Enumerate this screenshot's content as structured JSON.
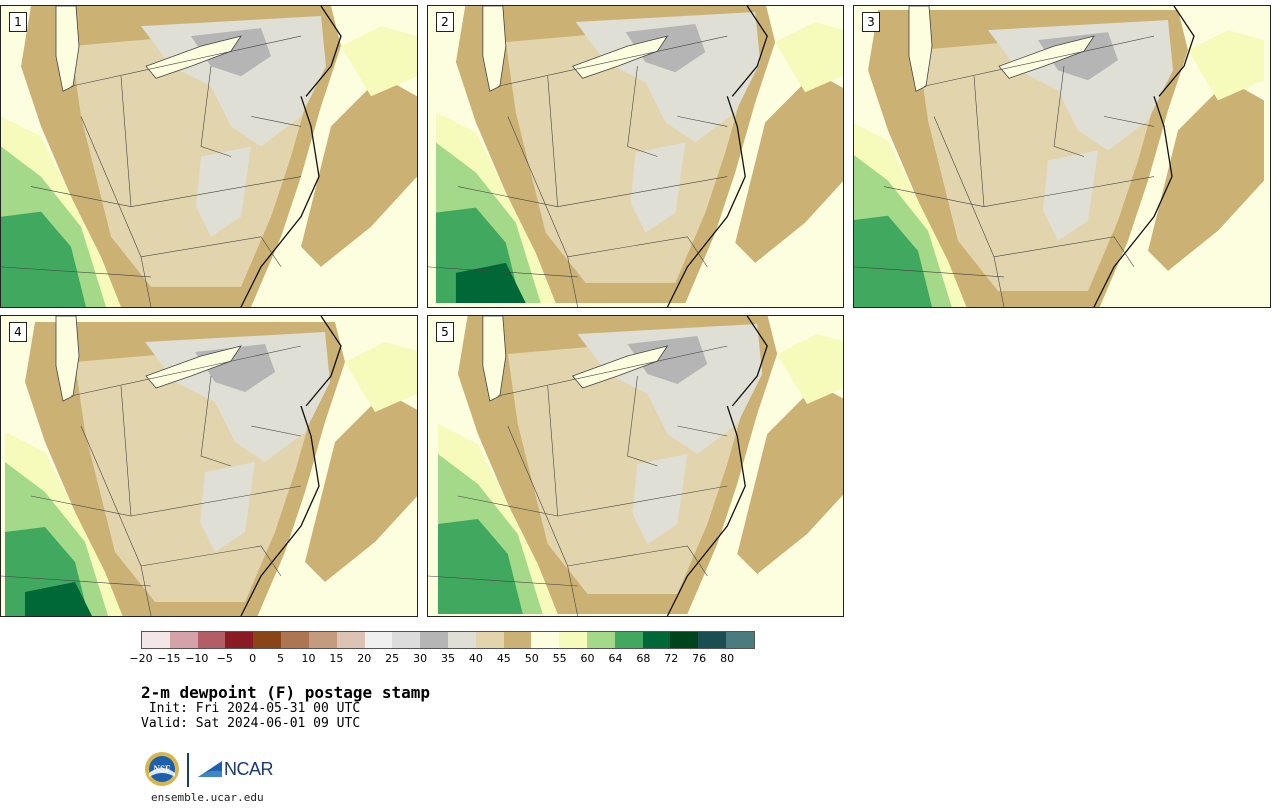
{
  "title": "2-m dewpoint (F) postage stamp",
  "init_line": " Init: Fri 2024-05-31 00 UTC",
  "valid_line": "Valid: Sat 2024-06-01 09 UTC",
  "site_url": "ensemble.ucar.edu",
  "logos": {
    "nsf": "NSF",
    "ncar": "NCAR"
  },
  "panels": [
    {
      "label": "1",
      "variant": 0
    },
    {
      "label": "2",
      "variant": 1
    },
    {
      "label": "3",
      "variant": 2
    },
    {
      "label": "4",
      "variant": 3
    },
    {
      "label": "5",
      "variant": 4
    }
  ],
  "colorbar": {
    "colors": [
      "#f2e6e6",
      "#d4a2a8",
      "#b35e67",
      "#8b1a24",
      "#8a4416",
      "#ab7650",
      "#c59a7e",
      "#ddc3b3",
      "#f0f0f0",
      "#dcdcdc",
      "#b5b5b5",
      "#dfdfd5",
      "#e2d5ad",
      "#cbb274",
      "#fdfde0",
      "#f6fbbb",
      "#a5d98a",
      "#41a85f",
      "#006837",
      "#00441b",
      "#1a4e50",
      "#4a7b7d"
    ],
    "ticks": [
      "−20",
      "−15",
      "−10",
      "−5",
      "0",
      "5",
      "10",
      "15",
      "20",
      "25",
      "30",
      "35",
      "40",
      "45",
      "50",
      "55",
      "60",
      "64",
      "68",
      "72",
      "76",
      "80"
    ]
  },
  "colors": {
    "land_light": "#e2d5ad",
    "land_dark": "#cbb274",
    "gray_light": "#dfdfd5",
    "gray_mid": "#b5b5b5",
    "humid_pale": "#fdfde0",
    "humid_yellow": "#f6fbbb",
    "green_light": "#a5d98a",
    "green_mid": "#41a85f",
    "green_dark": "#006837",
    "border": "#444444"
  }
}
